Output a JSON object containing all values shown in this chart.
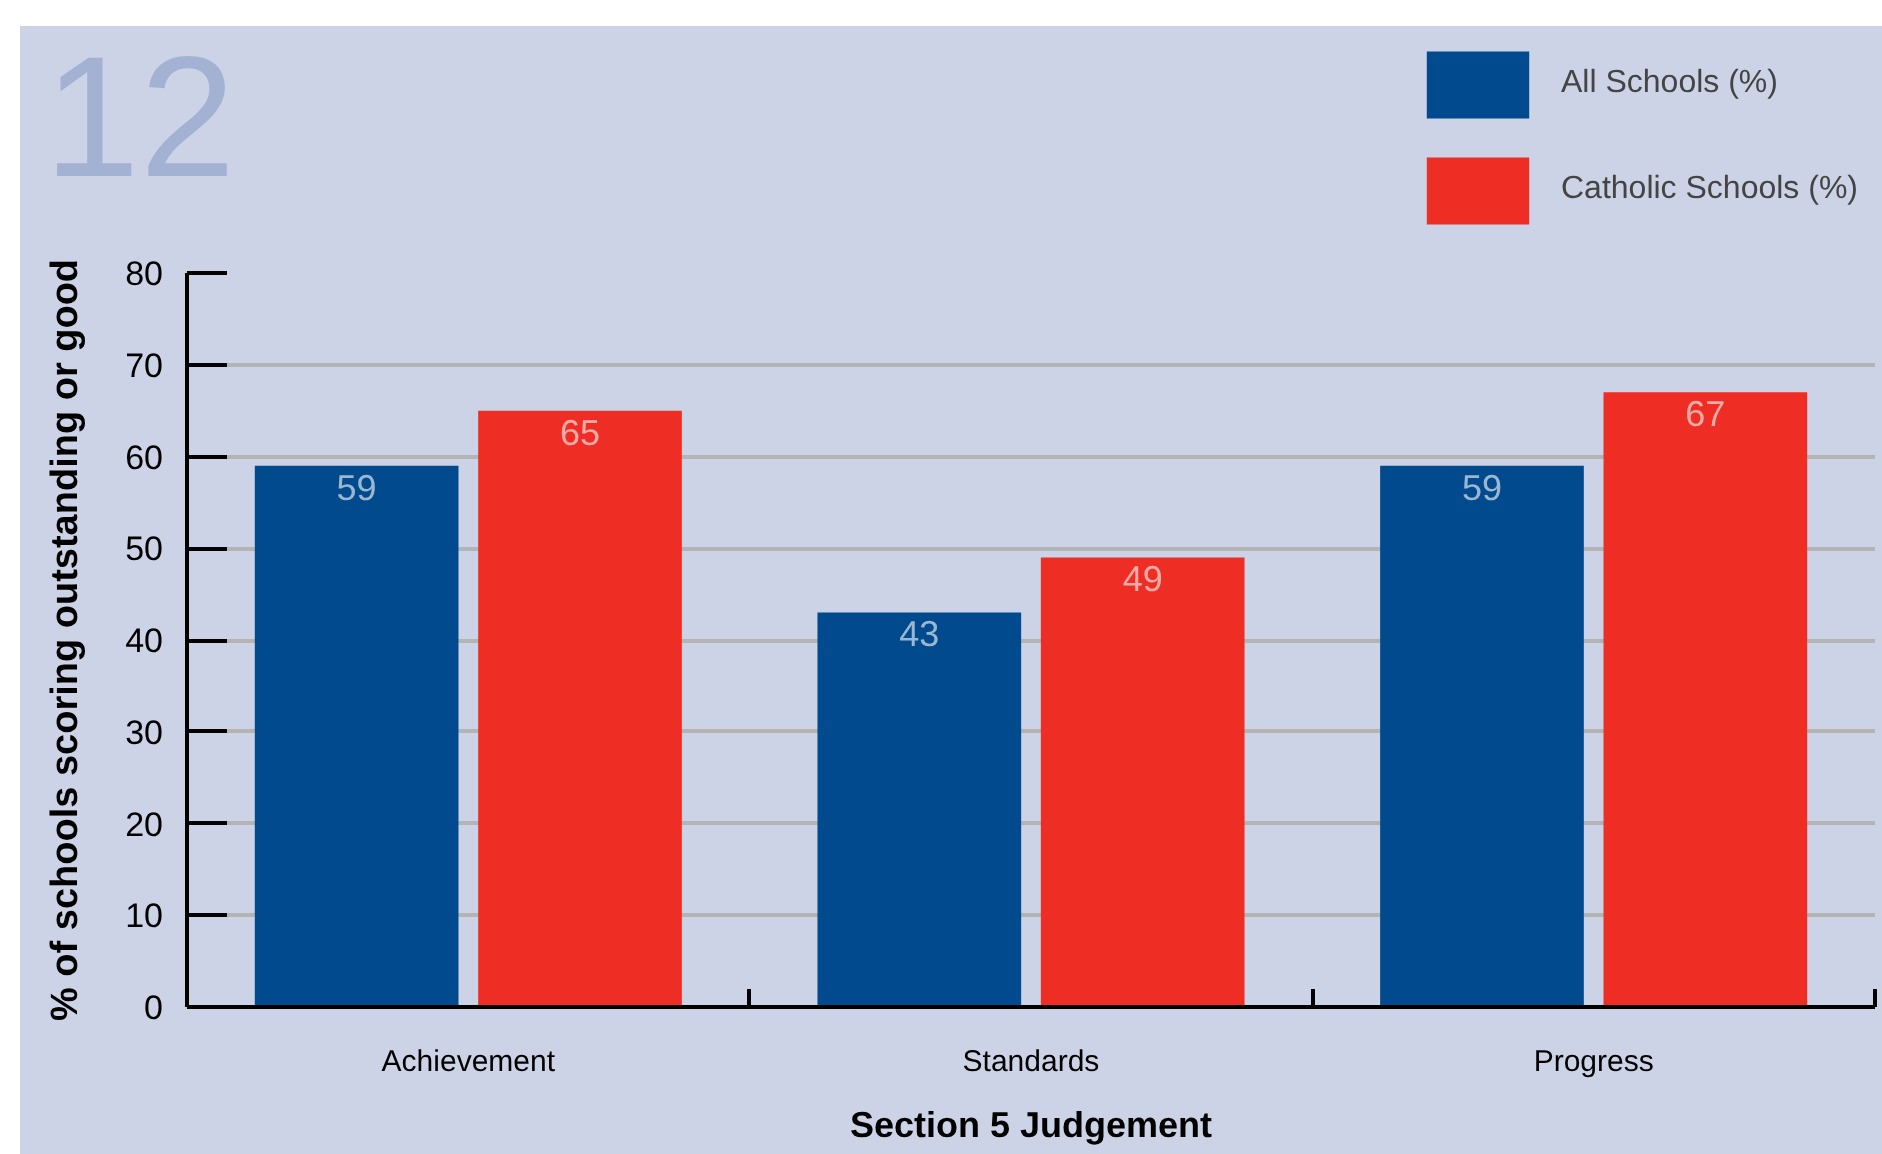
{
  "chart_data": {
    "type": "bar",
    "title": "12",
    "xlabel": "Section 5 Judgement",
    "ylabel": "% of schools scoring outstanding or good",
    "categories": [
      "Achievement",
      "Standards",
      "Progress"
    ],
    "series": [
      {
        "name": "All Schools (%)",
        "color": "#004a8d",
        "values": [
          59,
          43,
          59
        ]
      },
      {
        "name": "Catholic Schools (%)",
        "color": "#ee2e24",
        "values": [
          65,
          49,
          67
        ]
      }
    ],
    "ylim": [
      0,
      80
    ],
    "yticks": [
      0,
      10,
      20,
      30,
      40,
      50,
      60,
      70,
      80
    ],
    "grid": "y",
    "legend": "top right",
    "data_labels": true
  }
}
